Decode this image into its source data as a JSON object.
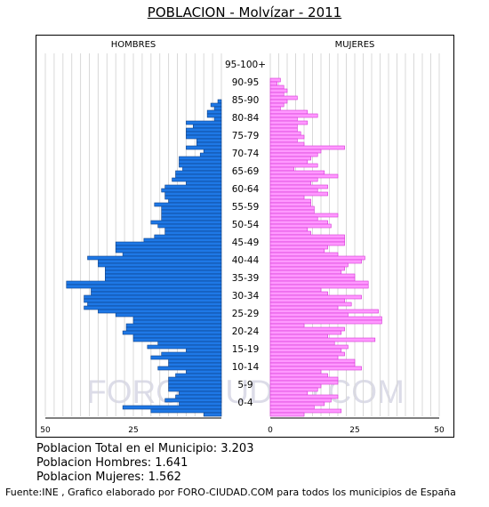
{
  "header": {
    "title": "POBLACION - Molvízar - 2011"
  },
  "summary": {
    "total": "Poblacion Total en el Municipio: 3.203",
    "hombres": "Poblacion Hombres: 1.641",
    "mujeres": "Poblacion Mujeres: 1.562"
  },
  "footer": {
    "source": "Fuente:INE , Grafico elaborado por FORO-CIUDAD.COM para todos los municipios de España"
  },
  "watermark": "FORO-CIUDAD.COM",
  "colors": {
    "hombres_fill": "#1e78e6",
    "hombres_stroke": "#0d3f86",
    "mujeres_fill": "#ff99ff",
    "mujeres_stroke": "#d633d6",
    "grid": "#d9d9d9",
    "watermark": "#dcdce8"
  },
  "chart_data": {
    "type": "bar",
    "orientation": "horizontal-pyramid",
    "left_label": "HOMBRES",
    "right_label": "MUJERES",
    "xlim": [
      0,
      50
    ],
    "x_ticks": [
      50,
      25,
      0,
      25,
      50
    ],
    "age_labels": [
      "95-100+",
      "90-95",
      "85-90",
      "80-84",
      "75-79",
      "70-74",
      "65-69",
      "60-64",
      "55-59",
      "50-54",
      "45-49",
      "40-44",
      "35-39",
      "30-34",
      "25-29",
      "20-24",
      "15-19",
      "10-14",
      "5-9",
      "0-4"
    ],
    "ages_from_top": [
      100,
      99,
      98,
      97,
      96,
      95,
      94,
      93,
      92,
      91,
      90,
      89,
      88,
      87,
      86,
      85,
      84,
      83,
      82,
      81,
      80,
      79,
      78,
      77,
      76,
      75,
      74,
      73,
      72,
      71,
      70,
      69,
      68,
      67,
      66,
      65,
      64,
      63,
      62,
      61,
      60,
      59,
      58,
      57,
      56,
      55,
      54,
      53,
      52,
      51,
      50,
      49,
      48,
      47,
      46,
      45,
      44,
      43,
      42,
      41,
      40,
      39,
      38,
      37,
      36,
      35,
      34,
      33,
      32,
      31,
      30,
      29,
      28,
      27,
      26,
      25,
      24,
      23,
      22,
      21,
      20,
      19,
      18,
      17,
      16,
      15,
      14,
      13,
      12,
      11,
      10,
      9,
      8,
      7,
      6,
      5,
      4,
      3,
      2,
      1,
      0
    ],
    "series": [
      {
        "name": "HOMBRES",
        "values": [
          0,
          0,
          0,
          0,
          0,
          0,
          0,
          0,
          0,
          0,
          0,
          0,
          1,
          3,
          2,
          4,
          4,
          2,
          10,
          8,
          10,
          10,
          10,
          7,
          7,
          10,
          5,
          6,
          12,
          12,
          12,
          11,
          13,
          13,
          14,
          10,
          16,
          17,
          16,
          16,
          15,
          19,
          17,
          17,
          17,
          17,
          20,
          18,
          16,
          16,
          19,
          22,
          30,
          30,
          30,
          28,
          38,
          35,
          35,
          33,
          33,
          33,
          33,
          44,
          44,
          37,
          37,
          39,
          39,
          38,
          39,
          35,
          30,
          25,
          25,
          27,
          27,
          28,
          25,
          25,
          18,
          21,
          10,
          17,
          20,
          15,
          15,
          18,
          10,
          13,
          15,
          15,
          15,
          15,
          12,
          13,
          16,
          12,
          28,
          20,
          5
        ]
      },
      {
        "name": "MUJERES",
        "values": [
          0,
          0,
          0,
          0,
          0,
          0,
          3,
          2,
          4,
          5,
          4,
          8,
          5,
          4,
          3,
          11,
          14,
          8,
          11,
          8,
          8,
          9,
          10,
          8,
          10,
          22,
          15,
          14,
          12,
          11,
          14,
          7,
          16,
          20,
          14,
          12,
          17,
          14,
          17,
          10,
          12,
          12,
          13,
          13,
          20,
          14,
          17,
          18,
          11,
          12,
          22,
          22,
          22,
          17,
          16,
          20,
          28,
          27,
          23,
          22,
          21,
          25,
          25,
          29,
          29,
          15,
          17,
          27,
          22,
          24,
          20,
          32,
          23,
          33,
          33,
          10,
          22,
          21,
          17,
          31,
          19,
          23,
          21,
          22,
          20,
          25,
          25,
          27,
          15,
          17,
          20,
          20,
          15,
          14,
          11,
          20,
          18,
          16,
          13,
          21,
          10
        ]
      }
    ]
  }
}
